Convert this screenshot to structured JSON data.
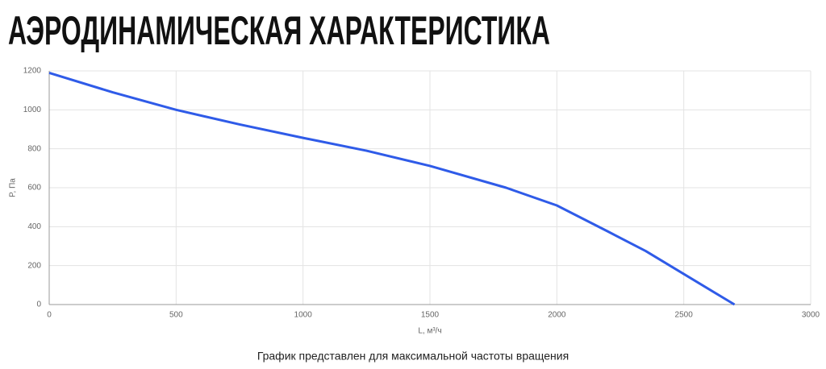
{
  "chart_data": {
    "type": "line",
    "title": "АЭРОДИНАМИЧЕСКАЯ ХАРАКТЕРИСТИКА",
    "x_label": "L, м³/ч",
    "y_label": "P, Па",
    "caption": "График представлен для максимальной частоты вращения",
    "x": [
      0,
      250,
      500,
      750,
      1000,
      1250,
      1500,
      1800,
      2000,
      2200,
      2350,
      2500,
      2700
    ],
    "series": [
      {
        "name": "P, Па",
        "color": "#2f5be8",
        "values": [
          1190,
          1090,
          1000,
          925,
          856,
          790,
          712,
          600,
          509,
          376,
          275,
          157,
          0
        ]
      }
    ],
    "xlim": [
      0,
      3000
    ],
    "xticks": [
      0,
      500,
      1000,
      1500,
      2000,
      2500,
      3000
    ],
    "ylim": [
      0,
      1200
    ],
    "yticks": [
      0,
      200,
      400,
      600,
      800,
      1000,
      1200
    ],
    "grid": true
  }
}
